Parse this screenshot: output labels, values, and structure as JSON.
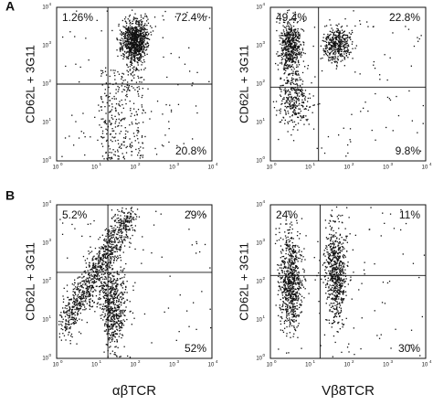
{
  "figure": {
    "tick_base": "10",
    "tick_exponents": [
      "0",
      "1",
      "2",
      "3",
      "4"
    ],
    "x_labels": [
      "αβTCR",
      "Vβ8TCR"
    ],
    "panels": [
      {
        "label": "A",
        "plots": [
          {
            "y_label": "CD62L + 3G11",
            "upper_left": "1.26%",
            "upper_right": "72.4%",
            "lower_right": "20.8%"
          },
          {
            "y_label": "CD62L + 3G11",
            "upper_left": "49.4%",
            "upper_right": "22.8%",
            "lower_right": "9.8%"
          }
        ]
      },
      {
        "label": "B",
        "plots": [
          {
            "y_label": "CD62L + 3G11",
            "upper_left": "5.2%",
            "upper_right": "29%",
            "lower_right": "52%"
          },
          {
            "y_label": "CD62L + 3G11",
            "upper_left": "24%",
            "upper_right": "11%",
            "lower_right": "30%"
          }
        ]
      }
    ]
  }
}
